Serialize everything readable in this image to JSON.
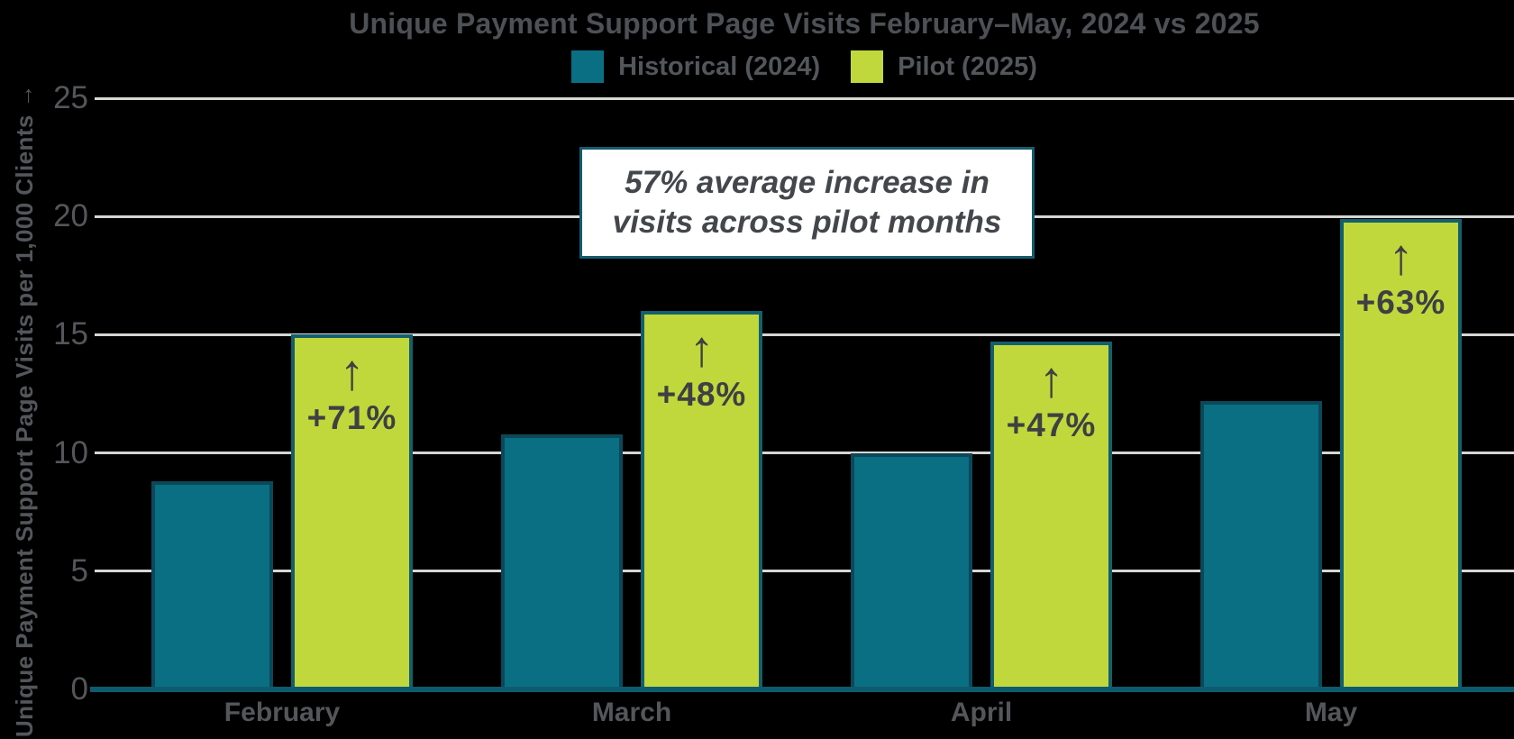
{
  "title": "Unique Payment Support Page Visits February–May, 2024 vs 2025",
  "legend": [
    {
      "label": "Historical (2024)",
      "color": "#0a6f83"
    },
    {
      "label": "Pilot (2025)",
      "color": "#c0d83c"
    }
  ],
  "annotation": {
    "line1": "57% average increase in",
    "line2": "visits across pilot months"
  },
  "icons": {
    "up_arrow": "↑"
  },
  "colors": {
    "historical_fill": "#0a6f83",
    "historical_border": "#0c4859",
    "pilot_fill": "#c0d83c",
    "pilot_border": "#135f6e",
    "axis_line": "#0e5b6e",
    "gridline": "#d8d6d3",
    "text": "#54565a",
    "label_text": "#3e4043"
  },
  "chart_data": {
    "type": "bar",
    "categories": [
      "February",
      "March",
      "April",
      "May"
    ],
    "series": [
      {
        "name": "Historical (2024)",
        "color": "#0a6f83",
        "values": [
          8.8,
          10.8,
          10.0,
          12.2
        ]
      },
      {
        "name": "Pilot (2025)",
        "color": "#c0d83c",
        "values": [
          15.0,
          16.0,
          14.7,
          19.9
        ],
        "bar_labels": [
          "+71%",
          "+48%",
          "+47%",
          "+63%"
        ]
      }
    ],
    "title": "Unique Payment Support Page Visits February–May, 2024 vs 2025",
    "xlabel": "",
    "ylabel": "Unique Payment Support Page Visits per 1,000 Clients →",
    "yticks": [
      0,
      5,
      10,
      15,
      20,
      25
    ],
    "ylim": [
      0,
      25
    ],
    "grid": true,
    "legend_position": "top",
    "annotation_text": "57% average increase in visits across pilot months"
  }
}
